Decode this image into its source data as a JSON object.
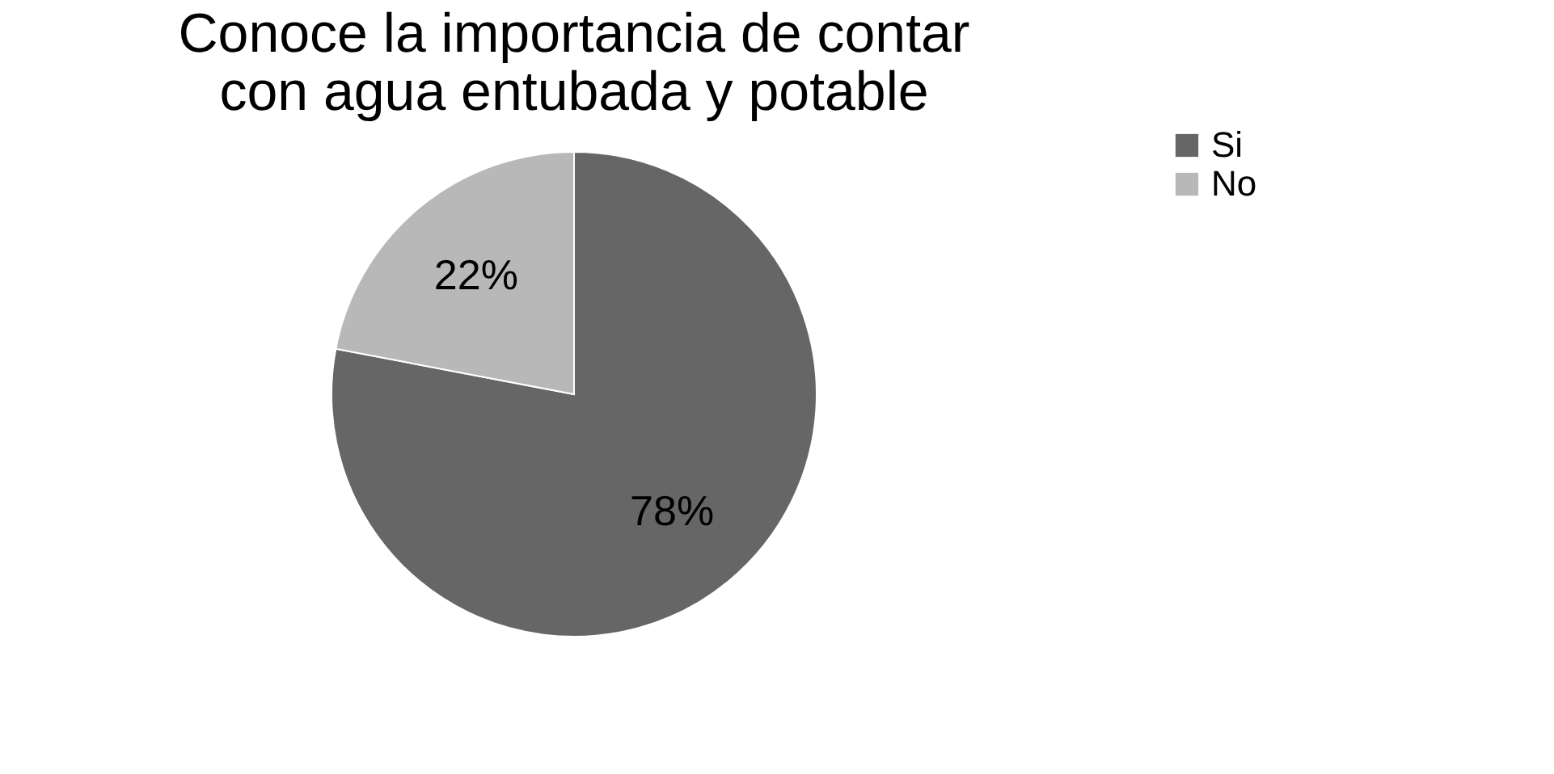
{
  "chart_data": {
    "type": "pie",
    "title": [
      "Conoce la importancia de contar",
      "con agua entubada y potable"
    ],
    "categories": [
      "Si",
      "No"
    ],
    "values": [
      78,
      22
    ],
    "colors": [
      "#666666",
      "#b8b8b8"
    ],
    "value_labels": [
      "78%",
      "22%"
    ],
    "legend": "right"
  }
}
